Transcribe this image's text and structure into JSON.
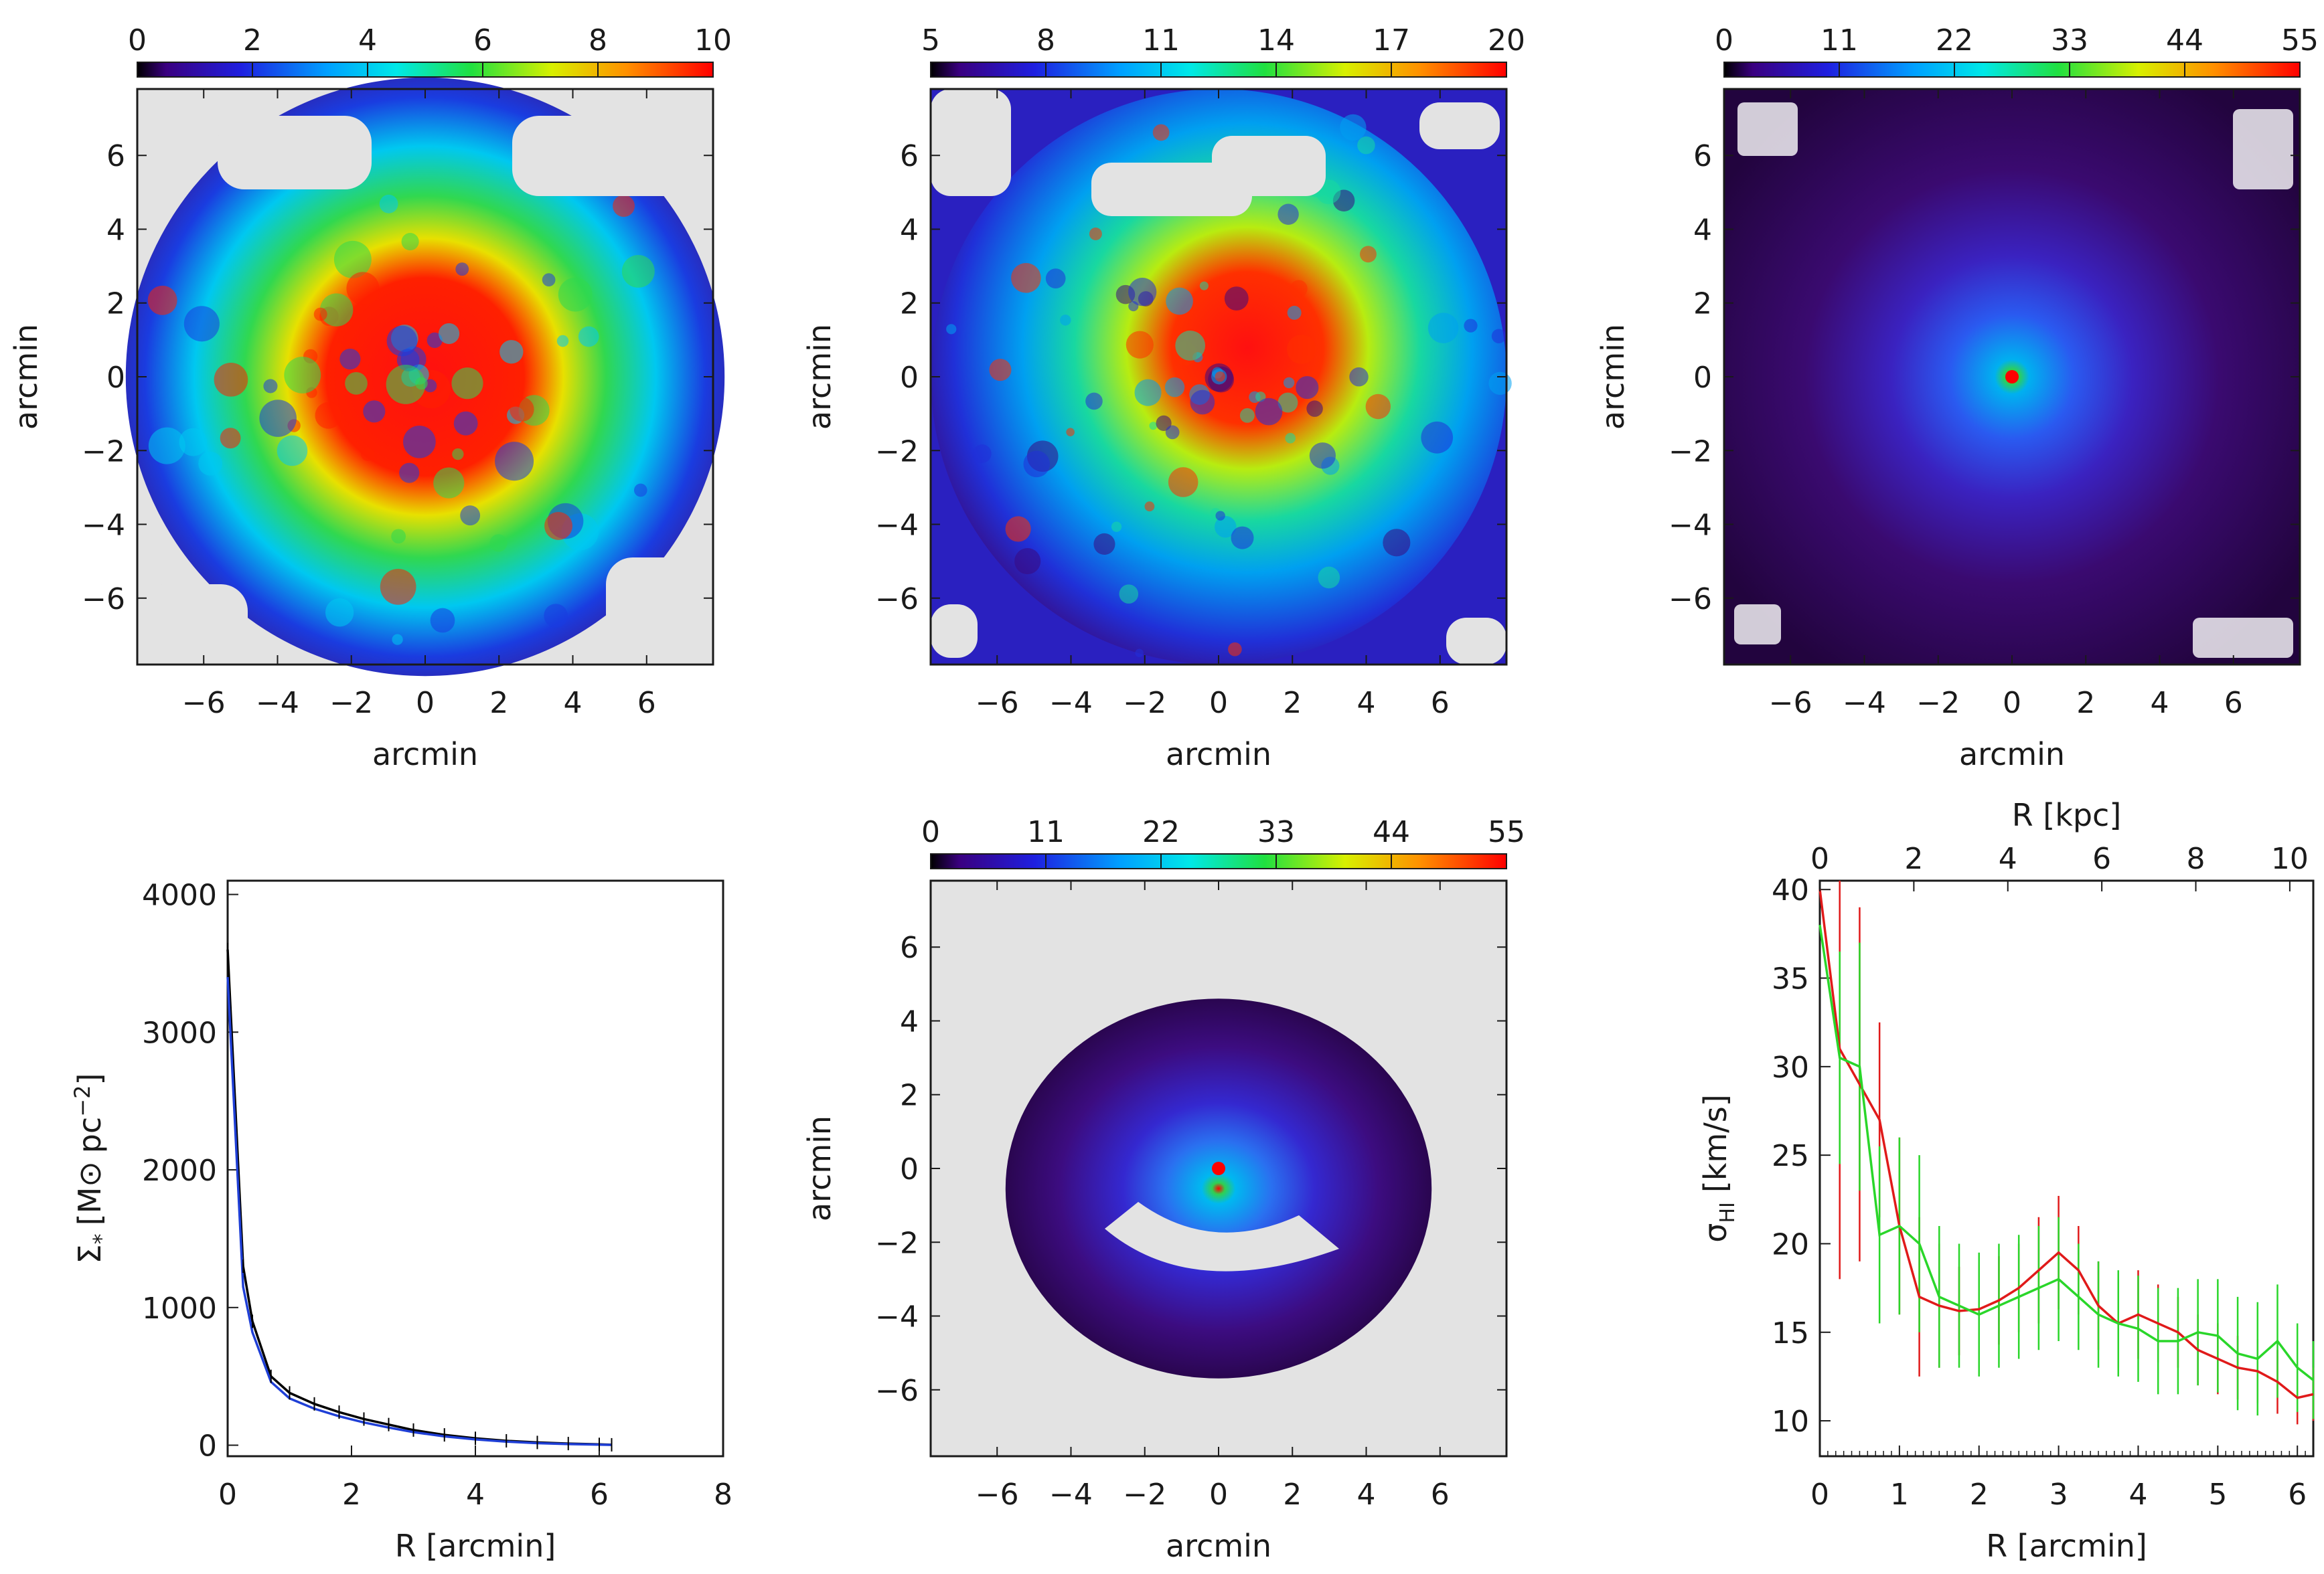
{
  "colors": {
    "background": "#ffffff",
    "axis": "#1a1a1a",
    "masked": "#e3e3e3",
    "series_blue": "#1f3fd6",
    "series_black": "#000000",
    "series_red": "#e01a1a",
    "series_green": "#2ad62a"
  },
  "chart_data": [
    {
      "id": "map1",
      "type": "heatmap",
      "xlabel": "arcmin",
      "ylabel": "arcmin",
      "xlim": [
        -7.8,
        7.8
      ],
      "ylim": [
        -7.8,
        7.8
      ],
      "xticks": [
        -6,
        -4,
        -2,
        0,
        2,
        4,
        6
      ],
      "yticks": [
        6,
        4,
        2,
        0,
        -2,
        -4,
        -6
      ],
      "colorbar": {
        "min": 0,
        "max": 10,
        "ticks": [
          0,
          2,
          4,
          6,
          8,
          10
        ]
      },
      "description_level": 6
    },
    {
      "id": "map2",
      "type": "heatmap",
      "xlabel": "arcmin",
      "ylabel": "arcmin",
      "xlim": [
        -7.8,
        7.8
      ],
      "ylim": [
        -7.8,
        7.8
      ],
      "xticks": [
        -6,
        -4,
        -2,
        0,
        2,
        4,
        6
      ],
      "yticks": [
        6,
        4,
        2,
        0,
        -2,
        -4,
        -6
      ],
      "colorbar": {
        "min": 5,
        "max": 20,
        "ticks": [
          5,
          8,
          11,
          14,
          17,
          20
        ]
      }
    },
    {
      "id": "map3",
      "type": "heatmap",
      "xlabel": "arcmin",
      "ylabel": "arcmin",
      "xlim": [
        -7.8,
        7.8
      ],
      "ylim": [
        -7.8,
        7.8
      ],
      "xticks": [
        -6,
        -4,
        -2,
        0,
        2,
        4,
        6
      ],
      "yticks": [
        6,
        4,
        2,
        0,
        -2,
        -4,
        -6
      ],
      "colorbar": {
        "min": 0,
        "max": 55,
        "ticks": [
          0,
          11,
          22,
          33,
          44,
          55
        ]
      }
    },
    {
      "id": "profile",
      "type": "line",
      "xlabel": "R [arcmin]",
      "ylabel_main": "Σ",
      "ylabel_sub": "*",
      "ylabel_unit": "[M",
      "ylabel_sun": "⊙",
      "ylabel_rest": "pc",
      "ylabel_exp": "−2",
      "ylabel_end": "]",
      "xlim": [
        0,
        8
      ],
      "ylim": [
        -80,
        4100
      ],
      "xticks": [
        0,
        2,
        4,
        6,
        8
      ],
      "yticks": [
        0,
        1000,
        2000,
        3000,
        4000
      ],
      "series": [
        {
          "name": "black",
          "x": [
            0.0,
            0.25,
            0.4,
            0.7,
            1.0,
            1.4,
            1.8,
            2.2,
            2.6,
            3.0,
            3.5,
            4.0,
            4.5,
            5.0,
            5.5,
            6.0,
            6.2
          ],
          "y": [
            3600,
            1300,
            900,
            500,
            380,
            300,
            240,
            190,
            150,
            110,
            75,
            50,
            32,
            20,
            12,
            6,
            3
          ]
        },
        {
          "name": "blue",
          "x": [
            0.0,
            0.25,
            0.4,
            0.7,
            1.0,
            1.4,
            1.8,
            2.2,
            2.6,
            3.0,
            3.5,
            4.0,
            4.5,
            5.0,
            5.5,
            6.0,
            6.2
          ],
          "y": [
            3400,
            1150,
            820,
            460,
            340,
            265,
            210,
            165,
            128,
            95,
            64,
            42,
            26,
            15,
            8,
            4,
            2
          ]
        }
      ]
    },
    {
      "id": "map4",
      "type": "heatmap",
      "xlabel": "arcmin",
      "ylabel": "arcmin",
      "xlim": [
        -7.8,
        7.8
      ],
      "ylim": [
        -7.8,
        7.8
      ],
      "xticks": [
        -6,
        -4,
        -2,
        0,
        2,
        4,
        6
      ],
      "yticks": [
        6,
        4,
        2,
        0,
        -2,
        -4,
        -6
      ],
      "colorbar": {
        "min": 0,
        "max": 55,
        "ticks": [
          0,
          11,
          22,
          33,
          44,
          55
        ]
      }
    },
    {
      "id": "dispersion",
      "type": "line",
      "xlabel": "R [arcmin]",
      "x2label": "R [kpc]",
      "ylabel_main": "σ",
      "ylabel_sub": "HI",
      "ylabel_unit": "[km/s]",
      "xlim": [
        0,
        6.2
      ],
      "ylim": [
        8,
        40.5
      ],
      "x2lim": [
        0,
        10.5
      ],
      "xticks": [
        0,
        1,
        2,
        3,
        4,
        5,
        6
      ],
      "x2ticks": [
        0,
        2,
        4,
        6,
        8,
        10
      ],
      "yticks": [
        10,
        15,
        20,
        25,
        30,
        35,
        40
      ],
      "series": [
        {
          "name": "red",
          "x": [
            0.0,
            0.25,
            0.5,
            0.75,
            1.0,
            1.25,
            1.5,
            1.75,
            2.0,
            2.25,
            2.5,
            2.75,
            3.0,
            3.25,
            3.5,
            3.75,
            4.0,
            4.25,
            4.5,
            4.75,
            5.0,
            5.25,
            5.5,
            5.75,
            6.0,
            6.2
          ],
          "y": [
            40,
            31,
            29,
            27,
            21,
            17,
            16.5,
            16.2,
            16.3,
            16.8,
            17.5,
            18.5,
            19.5,
            18.5,
            16.5,
            15.5,
            16,
            15.5,
            15,
            14,
            13.5,
            13,
            12.8,
            12.2,
            11.3,
            11.5
          ],
          "err": [
            0,
            13,
            10,
            5.5,
            5,
            4.5,
            3.5,
            2.5,
            2.5,
            2.5,
            2.5,
            3,
            3.2,
            2.5,
            2.5,
            2.5,
            2.5,
            2.2,
            2,
            2,
            2,
            1.8,
            1.8,
            1.8,
            1.5,
            1.5
          ]
        },
        {
          "name": "green",
          "x": [
            0.0,
            0.25,
            0.5,
            0.75,
            1.0,
            1.25,
            1.5,
            1.75,
            2.0,
            2.25,
            2.5,
            2.75,
            3.0,
            3.25,
            3.5,
            3.75,
            4.0,
            4.25,
            4.5,
            4.75,
            5.0,
            5.25,
            5.5,
            5.75,
            6.0,
            6.2
          ],
          "y": [
            38,
            30.5,
            30,
            20.5,
            21,
            20,
            17,
            16.5,
            16,
            16.5,
            17,
            17.5,
            18,
            17,
            16,
            15.5,
            15.2,
            14.5,
            14.5,
            15,
            14.8,
            13.8,
            13.5,
            14.5,
            13,
            12.3
          ],
          "err": [
            0,
            6,
            7,
            5,
            5,
            5,
            4,
            3.5,
            3.5,
            3.5,
            3.5,
            3.5,
            3.5,
            3,
            3,
            3,
            3,
            3,
            3,
            3,
            3.2,
            3.2,
            3.2,
            3.2,
            2.5,
            2.2
          ]
        }
      ]
    }
  ]
}
